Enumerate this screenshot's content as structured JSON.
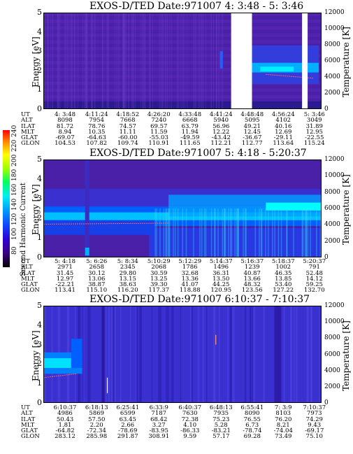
{
  "colorbar": {
    "label": "Second Harmonic Current",
    "ticks": [
      "240",
      "220",
      "200",
      "180",
      "160",
      "140",
      "120",
      "100",
      "80"
    ],
    "colors": [
      "#000000",
      "#2a0060",
      "#4a00b0",
      "#2020e0",
      "#0050ff",
      "#00a0ff",
      "#00e0ff",
      "#00ff80",
      "#a0ff00",
      "#ffff00",
      "#ff8000",
      "#ff0000"
    ]
  },
  "panels": [
    {
      "title": "EXOS-D/TED   Date:971007  4: 3:48 - 5: 3:46",
      "ylabel_left": "Energy [eV]",
      "ylabel_right": "Temperature [K]",
      "yticks_left": [
        "5",
        "4",
        "3",
        "2",
        "1",
        "0"
      ],
      "yticks_right": [
        "12000",
        "10000",
        "8000",
        "6000",
        "4000",
        "2000",
        "0"
      ],
      "table": {
        "labels": [
          "UT",
          "ALT",
          "ILAT",
          "MLT",
          "GLAT",
          "GLON"
        ],
        "columns": [
          [
            "4: 3:48",
            "8098",
            "81.72",
            "8.94",
            "-69.07",
            "104.53"
          ],
          [
            "4:11:24",
            "7954",
            "78.76",
            "10.35",
            "-64.63",
            "107.82"
          ],
          [
            "4:18:52",
            "7668",
            "74.57",
            "11.11",
            "-60.00",
            "109.74"
          ],
          [
            "4:26:20",
            "7240",
            "69.57",
            "11.59",
            "-55.03",
            "110.91"
          ],
          [
            "4:33:48",
            "6668",
            "63.79",
            "11.94",
            "-49.59",
            "111.65"
          ],
          [
            "4:41:24",
            "5940",
            "56.96",
            "12.22",
            "-43.42",
            "112.21"
          ],
          [
            "4:48:48",
            "5095",
            "49.21",
            "12.45",
            "-36.67",
            "112.77"
          ],
          [
            "4:56:24",
            "4102",
            "40.16",
            "12.69",
            "-29.11",
            "113.64"
          ],
          [
            "5: 3:46",
            "3049",
            "31.89",
            "12.95",
            "-22.55",
            "115.24"
          ]
        ]
      }
    },
    {
      "title": "EXOS-D/TED   Date:971007  5: 4:18 - 5:20:37",
      "ylabel_left": "Energy [eV]",
      "ylabel_right": "Temperature [K]",
      "yticks_left": [
        "5",
        "4",
        "3",
        "2",
        "1",
        "0"
      ],
      "yticks_right": [
        "12000",
        "10000",
        "8000",
        "6000",
        "4000",
        "2000",
        "0"
      ],
      "table": {
        "labels": [
          "UT",
          "ALT",
          "ILAT",
          "MLT",
          "GLAT",
          "GLON"
        ],
        "columns": [
          [
            "5: 4:18",
            "2971",
            "31.45",
            "12.97",
            "-22.21",
            "113.41"
          ],
          [
            "5: 6:26",
            "2658",
            "30.12",
            "13.06",
            "38.87",
            "115.10"
          ],
          [
            "5: 8:34",
            "2345",
            "29.80",
            "13.15",
            "38.63",
            "116.20"
          ],
          [
            "5:10:29",
            "2068",
            "30.59",
            "13.25",
            "39.30",
            "117.37"
          ],
          [
            "5:12:29",
            "1786",
            "32.68",
            "13.36",
            "41.07",
            "118.88"
          ],
          [
            "5:14:37",
            "1496",
            "36.31",
            "13.50",
            "44.25",
            "120.95"
          ],
          [
            "5:16:37",
            "1239",
            "40.87",
            "13.66",
            "48.32",
            "123.56"
          ],
          [
            "5:18:37",
            "1002",
            "46.35",
            "13.85",
            "53.40",
            "127.22"
          ],
          [
            "5:20:37",
            "791",
            "52.48",
            "14.12",
            "59.25",
            "132.70"
          ]
        ]
      }
    },
    {
      "title": "EXOS-D/TED   Date:971007  6:10:37 - 7:10:37",
      "ylabel_left": "Energy [eV]",
      "ylabel_right": "Temperature [K]",
      "yticks_left": [
        "5",
        "4",
        "3",
        "2",
        "1",
        "0"
      ],
      "yticks_right": [
        "12000",
        "10000",
        "8000",
        "6000",
        "4000",
        "2000",
        "0"
      ],
      "table": {
        "labels": [
          "UT",
          "ALT",
          "ILAT",
          "MLT",
          "GLAT",
          "GLON"
        ],
        "columns": [
          [
            "6:10:37",
            "4986",
            "50.43",
            "1.81",
            "-64.82",
            "283.12"
          ],
          [
            "6:18:13",
            "5869",
            "57.50",
            "2.20",
            "-72.34",
            "285.98"
          ],
          [
            "6:25:41",
            "6599",
            "63.45",
            "2.66",
            "-78.69",
            "291.87"
          ],
          [
            "6:33:9",
            "7187",
            "68.42",
            "3.27",
            "-83.95",
            "308.91"
          ],
          [
            "6:40:37",
            "7630",
            "72.38",
            "4.10",
            "-86.33",
            "9.59"
          ],
          [
            "6:48:13",
            "7935",
            "75.23",
            "5.28",
            "-83.21",
            "57.17"
          ],
          [
            "6:55:41",
            "8090",
            "76.55",
            "6.73",
            "-78.74",
            "69.28"
          ],
          [
            "7: 3:9",
            "8103",
            "76.20",
            "8.21",
            "-74.04",
            "73.49"
          ],
          [
            "7:10:37",
            "7973",
            "74.29",
            "9.43",
            "-69.17",
            "75.10"
          ]
        ]
      }
    }
  ],
  "chart_data": [
    {
      "type": "heatmap",
      "title": "EXOS-D/TED   Date:971007  4: 3:48 - 5: 3:46",
      "xlabel": "UT",
      "ylabel": "Energy [eV]",
      "y2label": "Temperature [K]",
      "ylim": [
        0,
        5
      ],
      "y2lim": [
        0,
        12000
      ],
      "x_ticks": [
        "4: 3:48",
        "4:11:24",
        "4:18:52",
        "4:26:20",
        "4:33:48",
        "4:41:24",
        "4:48:48",
        "4:56:24",
        "5: 3:46"
      ],
      "data_gaps": [
        [
          "4:44:30",
          "4:49:00"
        ],
        [
          "4:59:00",
          "5: 0:30"
        ]
      ],
      "peak_energy_eV": 2.0
    },
    {
      "type": "heatmap",
      "title": "EXOS-D/TED   Date:971007  5: 4:18 - 5:20:37",
      "xlabel": "UT",
      "ylabel": "Energy [eV]",
      "y2label": "Temperature [K]",
      "ylim": [
        0,
        5
      ],
      "y2lim": [
        0,
        12000
      ],
      "x_ticks": [
        "5: 4:18",
        "5: 6:26",
        "5: 8:34",
        "5:10:29",
        "5:12:29",
        "5:14:37",
        "5:16:37",
        "5:18:37",
        "5:20:37"
      ],
      "peak_energy_eV": 2.2,
      "colorbar_range": [
        80,
        240
      ]
    },
    {
      "type": "heatmap",
      "title": "EXOS-D/TED   Date:971007  6:10:37 - 7:10:37",
      "xlabel": "UT",
      "ylabel": "Energy [eV]",
      "y2label": "Temperature [K]",
      "ylim": [
        0,
        5
      ],
      "y2lim": [
        0,
        12000
      ],
      "x_ticks": [
        "6:10:37",
        "6:18:13",
        "6:25:41",
        "6:33:9",
        "6:40:37",
        "6:48:13",
        "6:55:41",
        "7: 3:9",
        "7:10:37"
      ],
      "peak_energy_eV": 2.0
    }
  ]
}
